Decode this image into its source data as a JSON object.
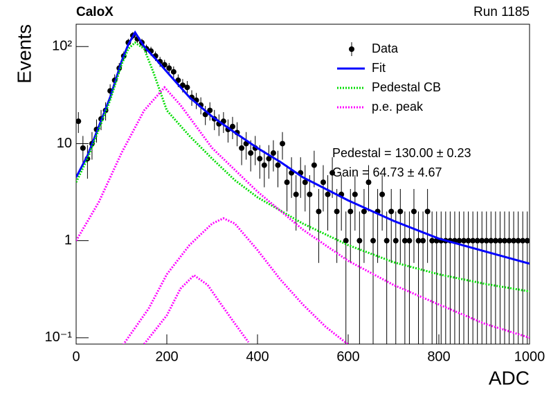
{
  "chart_data": {
    "type": "histfit",
    "title": "CaloX",
    "subtitle": "Run 1185",
    "xlabel": "ADC",
    "ylabel": "Events",
    "xlim": [
      0,
      1000
    ],
    "ylim": [
      0.086,
      170
    ],
    "log_y": true,
    "xticks": [
      0,
      200,
      400,
      600,
      800,
      1000
    ],
    "yticks": [
      {
        "value": 0.1,
        "label": "10⁻¹"
      },
      1,
      10,
      {
        "value": 100,
        "label": "10²"
      }
    ],
    "legend": "upper right",
    "annotations": [
      "Pedestal = 130.00 ± 0.23",
      "Gain = 64.73 ± 4.67"
    ],
    "series": [
      {
        "name": "Data",
        "kind": "points",
        "color": "#000000",
        "x": [
          5,
          15,
          25,
          35,
          45,
          55,
          65,
          75,
          85,
          95,
          105,
          115,
          125,
          135,
          145,
          155,
          165,
          175,
          185,
          195,
          205,
          215,
          225,
          235,
          245,
          255,
          265,
          275,
          285,
          295,
          305,
          315,
          325,
          335,
          345,
          355,
          365,
          375,
          385,
          395,
          405,
          415,
          425,
          435,
          445,
          455,
          465,
          475,
          485,
          495,
          505,
          515,
          525,
          535,
          545,
          555,
          565,
          575,
          585,
          595,
          605,
          615,
          625,
          635,
          645,
          655,
          665,
          675,
          685,
          695,
          705,
          715,
          725,
          735,
          745,
          755,
          765,
          775,
          785,
          795,
          805,
          815,
          825,
          835,
          845,
          855,
          865,
          875,
          885,
          895,
          905,
          915,
          925,
          935,
          945,
          955,
          965,
          975,
          985,
          995
        ],
        "values": [
          17,
          9,
          7,
          10,
          14,
          18,
          22,
          35,
          45,
          60,
          80,
          110,
          130,
          120,
          110,
          95,
          90,
          80,
          70,
          65,
          60,
          55,
          45,
          40,
          38,
          30,
          28,
          25,
          20,
          22,
          18,
          16,
          17,
          14,
          15,
          13,
          9,
          10,
          8,
          9,
          7,
          6,
          7,
          8,
          6,
          10,
          4,
          5,
          3,
          5,
          4,
          3,
          6,
          2,
          4,
          3,
          5,
          2,
          3,
          1,
          2,
          3,
          1,
          2,
          4,
          1,
          2,
          3,
          1,
          2,
          1,
          2,
          1,
          1,
          2,
          1,
          1,
          2,
          1,
          1,
          1,
          1,
          1,
          1,
          1,
          1,
          1,
          1,
          1,
          1,
          1,
          1,
          1,
          1,
          1,
          1,
          1,
          1,
          1,
          1
        ],
        "errors": [
          4.12,
          3,
          2.65,
          3.16,
          3.74,
          4.24,
          4.69,
          5.92,
          6.71,
          7.75,
          8.94,
          10.49,
          11.4,
          10.95,
          10.49,
          9.75,
          9.49,
          8.94,
          8.37,
          8.06,
          7.75,
          7.42,
          6.71,
          6.32,
          6.16,
          5.48,
          5.29,
          5,
          4.47,
          4.69,
          4.24,
          4,
          4.12,
          3.74,
          3.87,
          3.61,
          3,
          3.16,
          2.83,
          3,
          2.65,
          2.45,
          2.65,
          2.83,
          2.45,
          3.16,
          2,
          2.24,
          1.73,
          2.24,
          2,
          1.73,
          2.45,
          1.41,
          2,
          1.73,
          2.24,
          1.41,
          1.73,
          1,
          1.41,
          1.73,
          1,
          1.41,
          2,
          1,
          1.41,
          1.73,
          1,
          1.41,
          1,
          1.41,
          1,
          1,
          1.41,
          1,
          1,
          1.41,
          1,
          1,
          1,
          1,
          1,
          1,
          1,
          1,
          1,
          1,
          1,
          1,
          1,
          1,
          1,
          1,
          1,
          1,
          1,
          1,
          1,
          1
        ]
      },
      {
        "name": "Fit",
        "kind": "line",
        "dash": "solid",
        "color": "#0000ff",
        "pieces": [
          {
            "x": [
              0,
              25,
              50,
              75,
              100,
              115,
              130,
              150,
              175,
              200,
              250,
              300,
              350,
              400,
              450,
              500,
              600,
              700,
              800,
              900,
              1000
            ],
            "values": [
              4.5,
              7.5,
              15,
              30,
              70,
              105,
              140,
              100,
              75,
              55,
              30,
              19,
              13,
              9,
              6.5,
              4.5,
              2.6,
              1.6,
              1.05,
              0.78,
              0.58
            ]
          }
        ]
      },
      {
        "name": "Pedestal CB",
        "kind": "line",
        "dash": "dotted",
        "color": "#00dd00",
        "pieces": [
          {
            "x": [
              0,
              25,
              50,
              75,
              100,
              115,
              130,
              150,
              170,
              200,
              250,
              300,
              350,
              400,
              500,
              600,
              700,
              800,
              900,
              1000
            ],
            "values": [
              4,
              7,
              14,
              28,
              65,
              95,
              110,
              95,
              55,
              22,
              12,
              7,
              4.2,
              2.8,
              1.5,
              0.9,
              0.6,
              0.45,
              0.36,
              0.3
            ]
          }
        ]
      },
      {
        "name": "p.e. peak",
        "kind": "line",
        "dash": "dotted",
        "color": "#ff00ff",
        "pieces": [
          {
            "x": [
              0,
              50,
              100,
              150,
              195,
              230,
              300,
              400,
              500,
              600,
              700,
              800,
              900,
              1000
            ],
            "values": [
              1,
              2.5,
              8,
              22,
              38,
              25,
              9,
              3.2,
              1.3,
              0.62,
              0.35,
              0.22,
              0.14,
              0.1
            ]
          },
          {
            "x": [
              100,
              160,
              200,
              250,
              300,
              325,
              350,
              400,
              450,
              500,
              550,
              600
            ],
            "values": [
              0.08,
              0.2,
              0.45,
              0.9,
              1.5,
              1.7,
              1.5,
              0.8,
              0.4,
              0.22,
              0.13,
              0.085
            ]
          },
          {
            "x": [
              150,
              200,
              230,
              260,
              290,
              320,
              350,
              380
            ],
            "values": [
              0.086,
              0.17,
              0.32,
              0.44,
              0.35,
              0.22,
              0.14,
              0.09
            ]
          }
        ]
      }
    ]
  }
}
